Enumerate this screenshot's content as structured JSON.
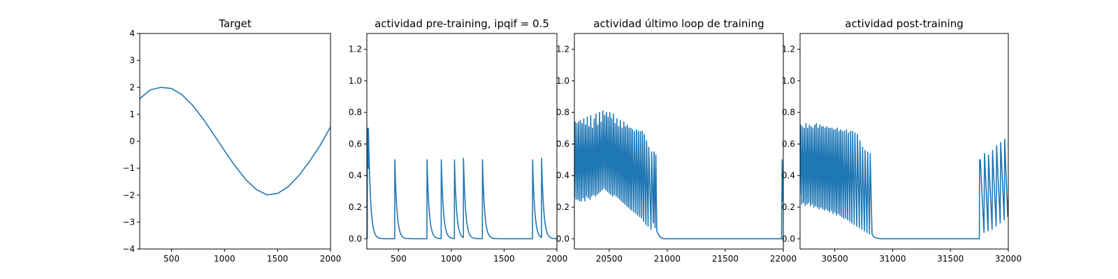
{
  "chart_data": [
    {
      "type": "line",
      "title": "Target",
      "xlabel": "",
      "ylabel": "",
      "xlim": [
        200,
        2000
      ],
      "ylim": [
        -4,
        4
      ],
      "xticks": [
        500,
        1000,
        1500,
        2000
      ],
      "yticks": [
        -4,
        -3,
        -2,
        -1,
        0,
        1,
        2,
        3,
        4
      ],
      "xtick_labels": [
        "500",
        "1000",
        "1500",
        "2000"
      ],
      "ytick_labels": [
        "−4",
        "−3",
        "−2",
        "−1",
        "0",
        "1",
        "2",
        "3",
        "4"
      ],
      "grid": false,
      "series": [
        {
          "color": "#1f77b4",
          "x": [
            200,
            300,
            400,
            500,
            600,
            700,
            800,
            900,
            1000,
            1100,
            1200,
            1300,
            1400,
            1500,
            1600,
            1700,
            1800,
            1900,
            2000
          ],
          "y": [
            1.58,
            1.91,
            2.0,
            1.96,
            1.72,
            1.33,
            0.82,
            0.24,
            -0.35,
            -0.92,
            -1.42,
            -1.79,
            -1.99,
            -1.94,
            -1.69,
            -1.28,
            -0.76,
            -0.17,
            0.53
          ]
        }
      ]
    },
    {
      "type": "line",
      "title": "actividad pre-training, ipqif = 0.5",
      "xlabel": "",
      "ylabel": "",
      "xlim": [
        200,
        2000
      ],
      "ylim": [
        -0.065,
        1.3
      ],
      "xticks": [
        500,
        1000,
        1500,
        2000
      ],
      "yticks": [
        0.0,
        0.2,
        0.4,
        0.6,
        0.8,
        1.0,
        1.2
      ],
      "xtick_labels": [
        "500",
        "1000",
        "1500",
        "2000"
      ],
      "ytick_labels": [
        "0.0",
        "0.2",
        "0.4",
        "0.6",
        "0.8",
        "1.0",
        "1.2"
      ],
      "grid": false,
      "series": [
        {
          "color": "#1f77b4",
          "spike_times": [
            205,
            215,
            465,
            770,
            905,
            1030,
            1115,
            1295,
            1770,
            1855
          ],
          "spike_peaks": [
            0.7,
            0.7,
            0.5,
            0.5,
            0.5,
            0.5,
            0.51,
            0.5,
            0.5,
            0.51
          ],
          "decay": 0.05
        }
      ]
    },
    {
      "type": "line",
      "title": "actividad último loop de training",
      "xlabel": "",
      "ylabel": "",
      "xlim": [
        20200,
        22000
      ],
      "ylim": [
        -0.065,
        1.3
      ],
      "xticks": [
        20500,
        21000,
        21500,
        22000
      ],
      "yticks": [
        0.0,
        0.2,
        0.4,
        0.6,
        0.8,
        1.0,
        1.2
      ],
      "xtick_labels": [
        "20500",
        "21000",
        "21500",
        "22000"
      ],
      "ytick_labels": [
        "0.0",
        "0.2",
        "0.4",
        "0.6",
        "0.8",
        "1.0",
        "1.2"
      ],
      "grid": false,
      "series": [
        {
          "color": "#1f77b4",
          "x": [
            20200,
            20206,
            20215,
            20221,
            20230,
            20236,
            20245,
            20251,
            20260,
            20266,
            20275,
            20281,
            20290,
            20296,
            20305,
            20311,
            20320,
            20326,
            20335,
            20341,
            20350,
            20356,
            20365,
            20371,
            20380,
            20386,
            20395,
            20401,
            20410,
            20416,
            20425,
            20431,
            20440,
            20446,
            20455,
            20461,
            20470,
            20476,
            20485,
            20491,
            20500,
            20506,
            20515,
            20521,
            20530,
            20536,
            20545,
            20551,
            20560,
            20566,
            20575,
            20581,
            20590,
            20596,
            20605,
            20611,
            20620,
            20626,
            20635,
            20641,
            20650,
            20656,
            20665,
            20671,
            20680,
            20686,
            20695,
            20701,
            20712,
            20718,
            20729,
            20735,
            20746,
            20752,
            20763,
            20769,
            20780,
            20786,
            20797,
            20803,
            20816,
            20822,
            20835,
            20841,
            20860,
            20866,
            20880,
            20887,
            20895,
            20902,
            20910,
            20930,
            20940,
            20950,
            20960,
            20980,
            21000,
            21050,
            21100,
            21500,
            21985,
            21990,
            21996,
            22000
          ],
          "y": [
            0.26,
            0.74,
            0.25,
            0.73,
            0.25,
            0.74,
            0.24,
            0.75,
            0.24,
            0.73,
            0.26,
            0.76,
            0.24,
            0.72,
            0.27,
            0.77,
            0.26,
            0.71,
            0.25,
            0.78,
            0.27,
            0.7,
            0.28,
            0.76,
            0.27,
            0.79,
            0.28,
            0.72,
            0.29,
            0.8,
            0.3,
            0.74,
            0.31,
            0.81,
            0.32,
            0.78,
            0.31,
            0.8,
            0.3,
            0.77,
            0.29,
            0.8,
            0.28,
            0.76,
            0.27,
            0.79,
            0.28,
            0.73,
            0.27,
            0.76,
            0.26,
            0.71,
            0.25,
            0.75,
            0.24,
            0.7,
            0.23,
            0.74,
            0.22,
            0.71,
            0.21,
            0.72,
            0.2,
            0.7,
            0.19,
            0.7,
            0.18,
            0.69,
            0.17,
            0.68,
            0.16,
            0.69,
            0.15,
            0.68,
            0.14,
            0.68,
            0.13,
            0.68,
            0.11,
            0.66,
            0.09,
            0.62,
            0.08,
            0.58,
            0.06,
            0.55,
            0.1,
            0.55,
            0.07,
            0.53,
            0.05,
            0.02,
            0.01,
            0.005,
            0.002,
            0.0,
            0.0,
            0.0,
            0.0,
            0.0,
            0.0,
            0.5,
            0.25,
            0.23
          ]
        }
      ]
    },
    {
      "type": "line",
      "title": "actividad post-training",
      "xlabel": "",
      "ylabel": "",
      "xlim": [
        30200,
        32000
      ],
      "ylim": [
        -0.065,
        1.3
      ],
      "xticks": [
        30500,
        31000,
        31500,
        32000
      ],
      "yticks": [
        0.0,
        0.2,
        0.4,
        0.6,
        0.8,
        1.0,
        1.2
      ],
      "xtick_labels": [
        "30500",
        "31000",
        "31500",
        "32000"
      ],
      "ytick_labels": [
        "0.0",
        "0.2",
        "0.4",
        "0.6",
        "0.8",
        "1.0",
        "1.2"
      ],
      "grid": false,
      "series": [
        {
          "color": "#1f77b4",
          "x": [
            30200,
            30206,
            30215,
            30221,
            30230,
            30236,
            30245,
            30251,
            30260,
            30266,
            30275,
            30281,
            30290,
            30296,
            30305,
            30311,
            30320,
            30326,
            30335,
            30341,
            30350,
            30356,
            30365,
            30371,
            30380,
            30386,
            30395,
            30401,
            30410,
            30416,
            30425,
            30431,
            30440,
            30446,
            30455,
            30461,
            30470,
            30476,
            30485,
            30491,
            30500,
            30506,
            30515,
            30521,
            30530,
            30536,
            30545,
            30551,
            30560,
            30566,
            30577,
            30583,
            30594,
            30600,
            30611,
            30617,
            30630,
            30636,
            30648,
            30654,
            30668,
            30674,
            30690,
            30696,
            30712,
            30718,
            30734,
            30740,
            30756,
            30762,
            30778,
            30784,
            30800,
            30806,
            30822,
            30830,
            30840,
            30860,
            30880,
            30900,
            30950,
            31000,
            31200,
            31500,
            31750,
            31752,
            31758,
            31790,
            31794,
            31825,
            31829,
            31860,
            31864,
            31895,
            31899,
            31930,
            31934,
            31965,
            31969,
            31995,
            32000
          ],
          "y": [
            0.28,
            0.72,
            0.22,
            0.71,
            0.23,
            0.7,
            0.21,
            0.73,
            0.22,
            0.7,
            0.23,
            0.72,
            0.21,
            0.71,
            0.22,
            0.7,
            0.2,
            0.72,
            0.21,
            0.73,
            0.2,
            0.7,
            0.19,
            0.72,
            0.2,
            0.71,
            0.19,
            0.71,
            0.18,
            0.7,
            0.19,
            0.71,
            0.18,
            0.7,
            0.17,
            0.7,
            0.18,
            0.7,
            0.16,
            0.69,
            0.17,
            0.69,
            0.15,
            0.7,
            0.16,
            0.68,
            0.15,
            0.69,
            0.14,
            0.68,
            0.13,
            0.68,
            0.13,
            0.69,
            0.12,
            0.67,
            0.11,
            0.68,
            0.1,
            0.68,
            0.09,
            0.67,
            0.08,
            0.66,
            0.07,
            0.62,
            0.06,
            0.58,
            0.05,
            0.56,
            0.04,
            0.55,
            0.03,
            0.54,
            0.03,
            0.02,
            0.01,
            0.005,
            0.002,
            0.0,
            0.0,
            0.0,
            0.0,
            0.0,
            0.0,
            0.5,
            0.5,
            0.04,
            0.54,
            0.05,
            0.53,
            0.06,
            0.56,
            0.08,
            0.59,
            0.1,
            0.61,
            0.12,
            0.63,
            0.14,
            0.26
          ]
        }
      ]
    }
  ]
}
